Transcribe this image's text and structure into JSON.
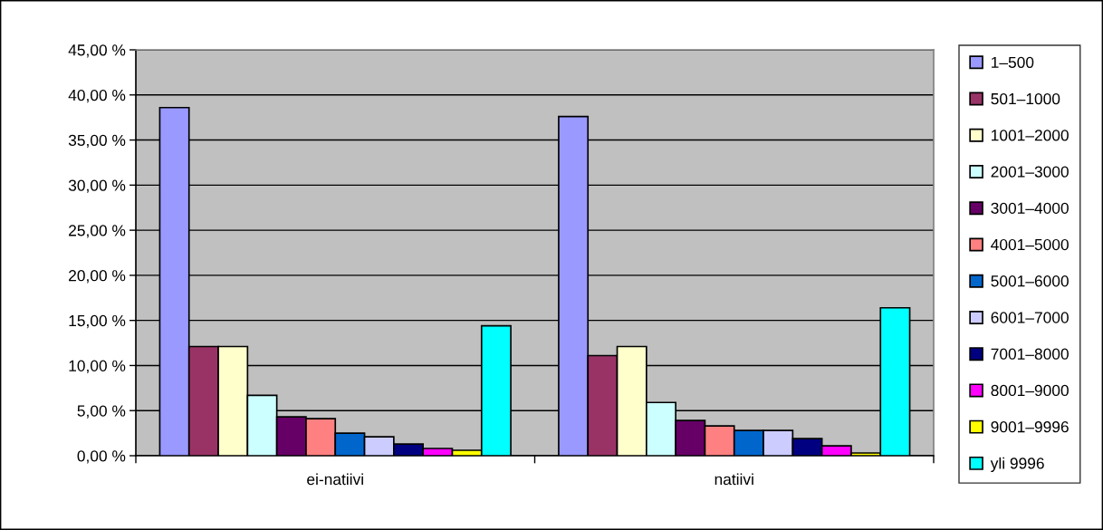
{
  "chart_data": {
    "type": "bar",
    "categories": [
      "ei-natiivi",
      "natiivi"
    ],
    "series": [
      {
        "name": "1–500",
        "color": "#9999ff",
        "values": [
          38.6,
          37.6
        ]
      },
      {
        "name": "501–1000",
        "color": "#993366",
        "values": [
          12.1,
          11.1
        ]
      },
      {
        "name": "1001–2000",
        "color": "#ffffcc",
        "values": [
          12.1,
          12.1
        ]
      },
      {
        "name": "2001–3000",
        "color": "#ccffff",
        "values": [
          6.7,
          5.9
        ]
      },
      {
        "name": "3001–4000",
        "color": "#660066",
        "values": [
          4.3,
          3.9
        ]
      },
      {
        "name": "4001–5000",
        "color": "#ff8080",
        "values": [
          4.1,
          3.3
        ]
      },
      {
        "name": "5001–6000",
        "color": "#0066cc",
        "values": [
          2.5,
          2.8
        ]
      },
      {
        "name": "6001–7000",
        "color": "#ccccff",
        "values": [
          2.1,
          2.8
        ]
      },
      {
        "name": "7001–8000",
        "color": "#000080",
        "values": [
          1.3,
          1.9
        ]
      },
      {
        "name": "8001–9000",
        "color": "#ff00ff",
        "values": [
          0.8,
          1.1
        ]
      },
      {
        "name": "9001–9996",
        "color": "#ffff00",
        "values": [
          0.6,
          0.3
        ]
      },
      {
        "name": "yli 9996",
        "color": "#00ffff",
        "values": [
          14.4,
          16.4
        ]
      }
    ],
    "ylim": [
      0,
      45
    ],
    "yticks": [
      {
        "value": 0,
        "label": "0,00 %"
      },
      {
        "value": 5,
        "label": "5,00 %"
      },
      {
        "value": 10,
        "label": "10,00 %"
      },
      {
        "value": 15,
        "label": "15,00 %"
      },
      {
        "value": 20,
        "label": "20,00 %"
      },
      {
        "value": 25,
        "label": "25,00 %"
      },
      {
        "value": 30,
        "label": "30,00 %"
      },
      {
        "value": 35,
        "label": "35,00 %"
      },
      {
        "value": 40,
        "label": "40,00 %"
      },
      {
        "value": 45,
        "label": "45,00 %"
      }
    ],
    "grid": "y",
    "legend": "right"
  }
}
